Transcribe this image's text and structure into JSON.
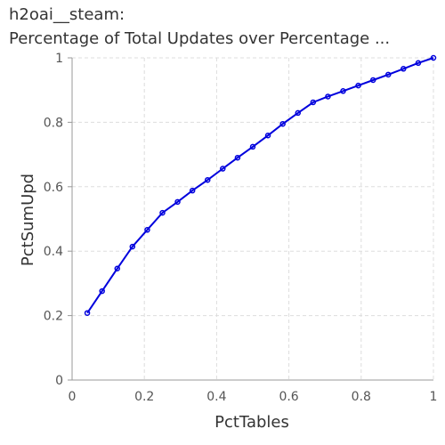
{
  "chart_data": {
    "type": "line",
    "title_lines": [
      "h2oai__steam:",
      "Percentage of Total Updates over Percentage ..."
    ],
    "xlabel": "PctTables",
    "ylabel": "PctSumUpd",
    "xlim": [
      0,
      1
    ],
    "ylim": [
      0,
      1
    ],
    "x_ticks": [
      "0",
      "0.2",
      "0.4",
      "0.6",
      "0.8",
      "1"
    ],
    "y_ticks": [
      "0",
      "0.2",
      "0.4",
      "0.6",
      "0.8",
      "1"
    ],
    "grid": true,
    "series": [
      {
        "color": "#0000dd",
        "x": [
          0.042,
          0.083,
          0.125,
          0.167,
          0.208,
          0.25,
          0.292,
          0.333,
          0.375,
          0.417,
          0.458,
          0.5,
          0.542,
          0.583,
          0.625,
          0.667,
          0.708,
          0.75,
          0.792,
          0.833,
          0.875,
          0.917,
          0.958,
          1.0
        ],
        "y": [
          0.208,
          0.276,
          0.346,
          0.414,
          0.466,
          0.519,
          0.553,
          0.588,
          0.621,
          0.656,
          0.69,
          0.724,
          0.759,
          0.795,
          0.829,
          0.862,
          0.88,
          0.897,
          0.914,
          0.931,
          0.948,
          0.966,
          0.984,
          1.0
        ]
      }
    ]
  }
}
